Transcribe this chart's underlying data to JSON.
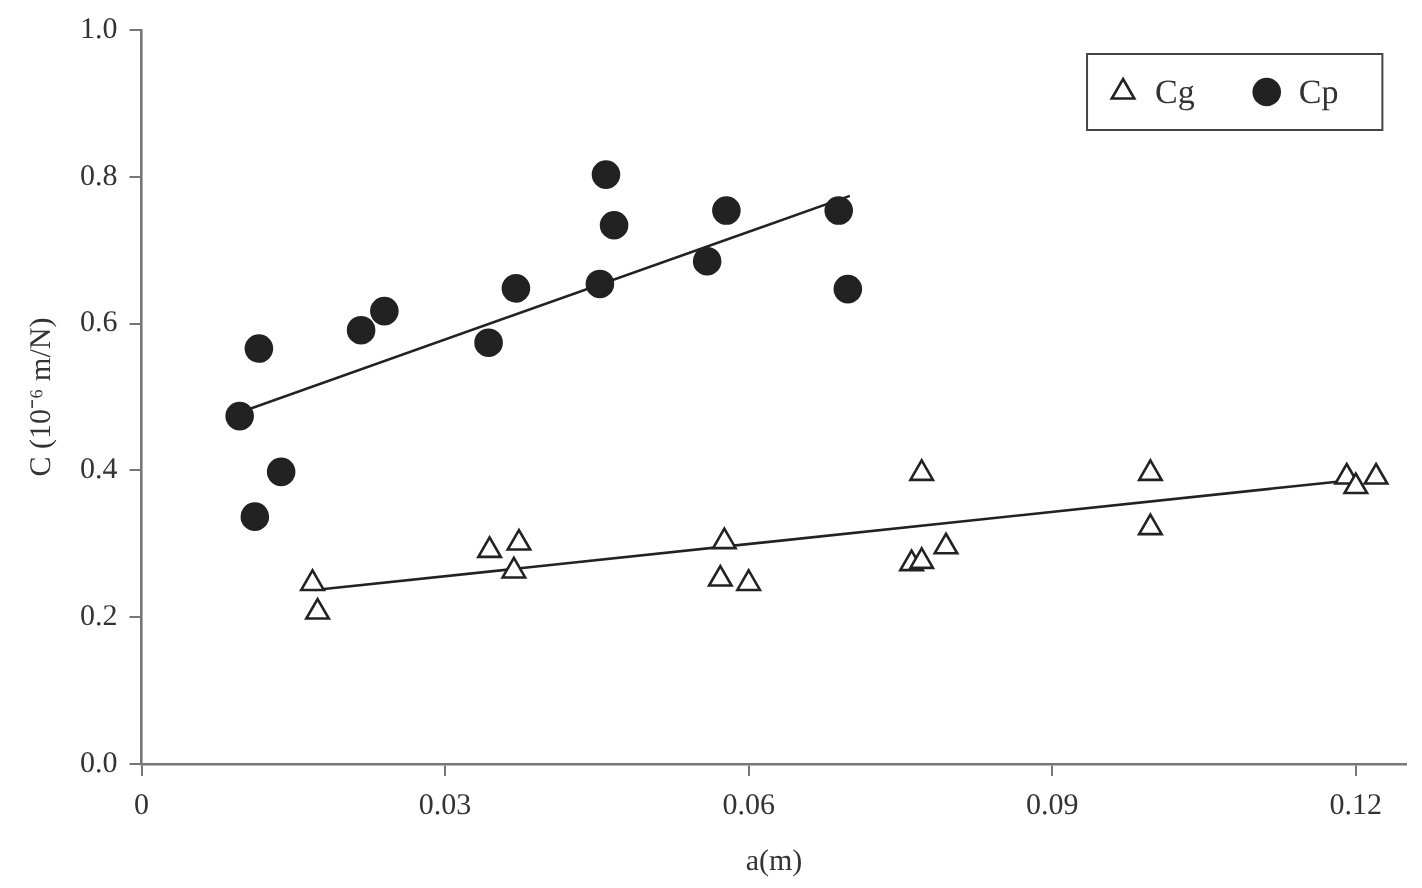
{
  "chart_data": {
    "type": "scatter",
    "xlabel": "a(m)",
    "ylabel": "C (10⁻⁶ m/N)",
    "xlim": [
      0,
      0.125
    ],
    "xticks": [
      0,
      0.03,
      0.06,
      0.09,
      0.12
    ],
    "ylim": [
      0,
      1
    ],
    "yticks": [
      {
        "value": 0,
        "label": "0.0"
      },
      {
        "value": 0.2,
        "label": "0.2"
      },
      {
        "value": 0.4,
        "label": "0.4"
      },
      {
        "value": 0.6,
        "label": "0.6"
      },
      {
        "value": 0.8,
        "label": "0.8"
      },
      {
        "value": 1,
        "label": "1.0"
      }
    ],
    "grid": false,
    "legend": "top right",
    "series": [
      {
        "name": "Cg",
        "type": "scatter",
        "marker": "triangle",
        "color": "#222222",
        "x": [
          0.0169,
          0.0174,
          0.0344,
          0.0373,
          0.0368,
          0.0576,
          0.0572,
          0.06,
          0.0771,
          0.0761,
          0.0771,
          0.0795,
          0.0997,
          0.0997,
          0.1191,
          0.12,
          0.122
        ],
        "values": [
          0.246,
          0.207,
          0.291,
          0.301,
          0.263,
          0.303,
          0.252,
          0.246,
          0.396,
          0.273,
          0.276,
          0.296,
          0.396,
          0.322,
          0.391,
          0.378,
          0.391
        ]
      },
      {
        "name": "Cp",
        "type": "scatter",
        "marker": "circle",
        "color": "#222222",
        "x": [
          0.0097,
          0.0116,
          0.0112,
          0.0138,
          0.0217,
          0.024,
          0.0343,
          0.037,
          0.0459,
          0.0467,
          0.0453,
          0.0559,
          0.0578,
          0.0689,
          0.0698
        ],
        "values": [
          0.474,
          0.566,
          0.337,
          0.398,
          0.591,
          0.617,
          0.574,
          0.648,
          0.803,
          0.734,
          0.654,
          0.685,
          0.754,
          0.754,
          0.647
        ]
      },
      {
        "type": "line",
        "marker": "none",
        "line_style": "solid",
        "color": "#222222",
        "x": [
          0.0171,
          0.1191
        ],
        "values": [
          0.237,
          0.386
        ]
      },
      {
        "type": "line",
        "marker": "none",
        "line_style": "solid",
        "color": "#222222",
        "x": [
          0.0097,
          0.07
        ],
        "values": [
          0.479,
          0.774
        ]
      }
    ]
  }
}
